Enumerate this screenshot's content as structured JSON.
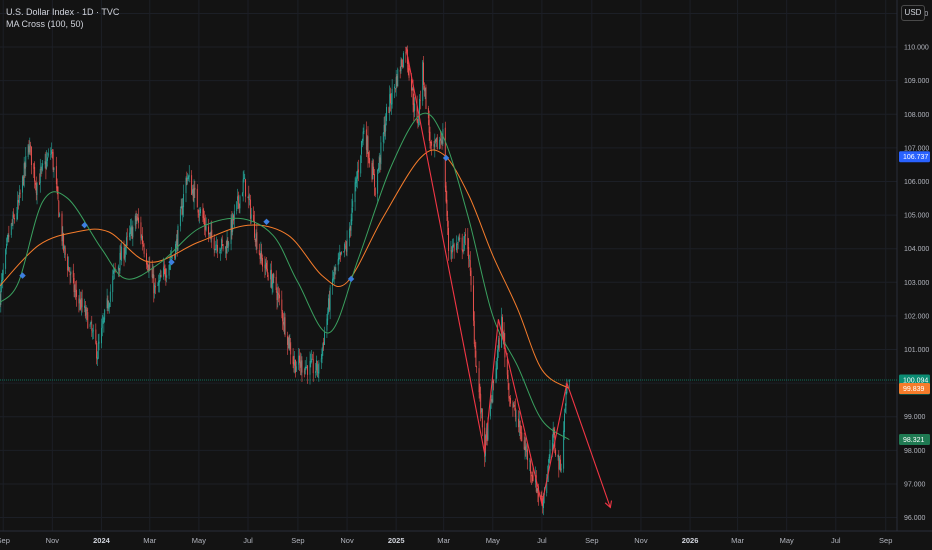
{
  "header": {
    "title": "U.S. Dollar Index · 1D · TVC",
    "indicator": "MA Cross (100, 50)"
  },
  "currency_button": "USD",
  "price_tags": {
    "blue_level": "106.737",
    "current_price": "100.094",
    "countdown": "20:48:50",
    "ma_orange": "99.839",
    "ma_green": "98.321"
  },
  "colors": {
    "background": "#131313",
    "up_candle": "#26a69a",
    "down_candle": "#ef5350",
    "ma100": "#f57c2b",
    "ma50": "#3aa05f",
    "cross_marker": "#3d7fe0",
    "trendline": "#f23645",
    "current_tag": "#0b8c73",
    "blue_tag": "#2962ff"
  },
  "chart_data": {
    "type": "candlestick",
    "title": "U.S. Dollar Index · 1D · TVC",
    "currency": "USD",
    "y_ticks": [
      "111.000",
      "110.000",
      "109.000",
      "108.000",
      "107.000",
      "106.000",
      "105.000",
      "104.000",
      "103.000",
      "102.000",
      "101.000",
      "100.000",
      "99.000",
      "98.000",
      "97.000",
      "96.000"
    ],
    "x_ticks": [
      {
        "label": "Sep",
        "bold": false
      },
      {
        "label": "Nov",
        "bold": false
      },
      {
        "label": "2024",
        "bold": true
      },
      {
        "label": "Mar",
        "bold": false
      },
      {
        "label": "May",
        "bold": false
      },
      {
        "label": "Jul",
        "bold": false
      },
      {
        "label": "Sep",
        "bold": false
      },
      {
        "label": "Nov",
        "bold": false
      },
      {
        "label": "2025",
        "bold": true
      },
      {
        "label": "Mar",
        "bold": false
      },
      {
        "label": "May",
        "bold": false
      },
      {
        "label": "Jul",
        "bold": false
      },
      {
        "label": "Sep",
        "bold": false
      },
      {
        "label": "Nov",
        "bold": false
      },
      {
        "label": "2026",
        "bold": true
      },
      {
        "label": "Mar",
        "bold": false
      },
      {
        "label": "May",
        "bold": false
      },
      {
        "label": "Jul",
        "bold": false
      },
      {
        "label": "Sep",
        "bold": false
      }
    ],
    "x_tick_dates": [
      "2023-09-01",
      "2023-11-01",
      "2024-01-01",
      "2024-03-01",
      "2024-05-01",
      "2024-07-01",
      "2024-09-01",
      "2024-11-01",
      "2025-01-01",
      "2025-03-01",
      "2025-05-01",
      "2025-07-01",
      "2025-09-01",
      "2025-11-01",
      "2026-01-01",
      "2026-03-01",
      "2026-05-01",
      "2026-07-01",
      "2026-09-01"
    ],
    "ylim": [
      95.6,
      111.4
    ],
    "xlim": [
      "2023-08-28",
      "2026-09-15"
    ],
    "last_price": 100.094,
    "price_anchors": [
      [
        "2023-08-28",
        102.6
      ],
      [
        "2023-09-08",
        104.4
      ],
      [
        "2023-09-20",
        105.3
      ],
      [
        "2023-10-03",
        107.1
      ],
      [
        "2023-10-12",
        105.9
      ],
      [
        "2023-10-31",
        106.9
      ],
      [
        "2023-11-15",
        104.0
      ],
      [
        "2023-11-29",
        102.7
      ],
      [
        "2023-12-15",
        101.9
      ],
      [
        "2023-12-27",
        100.9
      ],
      [
        "2024-01-16",
        103.2
      ],
      [
        "2024-02-14",
        104.9
      ],
      [
        "2024-03-08",
        102.7
      ],
      [
        "2024-04-03",
        104.1
      ],
      [
        "2024-04-16",
        106.2
      ],
      [
        "2024-05-15",
        104.3
      ],
      [
        "2024-06-03",
        104.0
      ],
      [
        "2024-06-26",
        106.0
      ],
      [
        "2024-07-17",
        103.7
      ],
      [
        "2024-08-05",
        102.8
      ],
      [
        "2024-08-27",
        100.6
      ],
      [
        "2024-09-27",
        100.4
      ],
      [
        "2024-10-15",
        103.2
      ],
      [
        "2024-11-01",
        104.1
      ],
      [
        "2024-11-22",
        107.6
      ],
      [
        "2024-12-06",
        105.8
      ],
      [
        "2024-12-20",
        108.0
      ],
      [
        "2025-01-13",
        110.0
      ],
      [
        "2025-01-27",
        107.6
      ],
      [
        "2025-02-03",
        109.3
      ],
      [
        "2025-02-14",
        106.8
      ],
      [
        "2025-02-28",
        107.4
      ],
      [
        "2025-03-07",
        104.0
      ],
      [
        "2025-03-31",
        104.2
      ],
      [
        "2025-04-10",
        100.7
      ],
      [
        "2025-04-21",
        98.0
      ],
      [
        "2025-05-12",
        101.8
      ],
      [
        "2025-05-22",
        99.6
      ],
      [
        "2025-06-12",
        97.9
      ],
      [
        "2025-07-01",
        96.4
      ],
      [
        "2025-07-15",
        98.4
      ],
      [
        "2025-07-24",
        97.4
      ],
      [
        "2025-08-01",
        100.0
      ],
      [
        "2025-08-04",
        100.1
      ]
    ],
    "series": [
      {
        "name": "MA 100",
        "color": "#f57c2b",
        "anchors": [
          [
            "2023-08-28",
            102.9
          ],
          [
            "2023-10-15",
            104.1
          ],
          [
            "2023-12-01",
            104.5
          ],
          [
            "2024-01-10",
            104.5
          ],
          [
            "2024-03-01",
            103.6
          ],
          [
            "2024-05-01",
            104.2
          ],
          [
            "2024-07-01",
            104.7
          ],
          [
            "2024-08-20",
            104.4
          ],
          [
            "2024-10-01",
            103.2
          ],
          [
            "2024-11-01",
            103.0
          ],
          [
            "2024-12-15",
            104.9
          ],
          [
            "2025-01-31",
            106.7
          ],
          [
            "2025-03-01",
            106.8
          ],
          [
            "2025-04-01",
            105.6
          ],
          [
            "2025-05-01",
            103.8
          ],
          [
            "2025-06-01",
            102.2
          ],
          [
            "2025-07-01",
            100.4
          ],
          [
            "2025-08-04",
            99.839
          ]
        ]
      },
      {
        "name": "MA 50",
        "color": "#3aa05f",
        "anchors": [
          [
            "2023-08-28",
            102.4
          ],
          [
            "2023-09-20",
            103.0
          ],
          [
            "2023-10-20",
            105.4
          ],
          [
            "2023-11-20",
            105.5
          ],
          [
            "2024-01-01",
            104.0
          ],
          [
            "2024-02-01",
            103.1
          ],
          [
            "2024-03-15",
            103.6
          ],
          [
            "2024-05-01",
            104.6
          ],
          [
            "2024-06-20",
            104.9
          ],
          [
            "2024-08-01",
            104.4
          ],
          [
            "2024-09-01",
            103.0
          ],
          [
            "2024-10-10",
            101.5
          ],
          [
            "2024-11-15",
            103.7
          ],
          [
            "2024-12-25",
            106.4
          ],
          [
            "2025-02-01",
            108.0
          ],
          [
            "2025-03-01",
            107.3
          ],
          [
            "2025-04-01",
            104.9
          ],
          [
            "2025-05-01",
            102.0
          ],
          [
            "2025-06-01",
            100.5
          ],
          [
            "2025-07-01",
            98.9
          ],
          [
            "2025-08-04",
            98.321
          ]
        ]
      }
    ],
    "cross_markers": [
      {
        "date": "2023-09-25",
        "value": 103.2
      },
      {
        "date": "2023-12-11",
        "value": 104.7
      },
      {
        "date": "2024-03-28",
        "value": 103.6
      },
      {
        "date": "2024-07-24",
        "value": 104.8
      },
      {
        "date": "2024-11-06",
        "value": 103.1
      },
      {
        "date": "2025-03-04",
        "value": 106.7
      }
    ],
    "trendline": [
      [
        "2025-01-13",
        110.0
      ],
      [
        "2025-04-21",
        97.9
      ],
      [
        "2025-05-08",
        101.9
      ],
      [
        "2025-07-01",
        96.4
      ],
      [
        "2025-08-01",
        100.0
      ],
      [
        "2025-09-24",
        96.3
      ]
    ],
    "arrow_end": true,
    "horizontal_line": 100.094
  }
}
